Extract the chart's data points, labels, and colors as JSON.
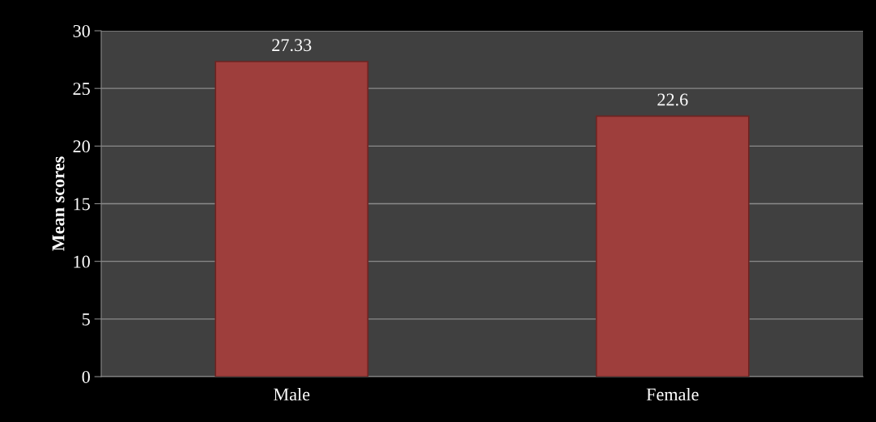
{
  "chart_data": {
    "type": "bar",
    "ylabel": "Mean scores",
    "categories": [
      "Male",
      "Female"
    ],
    "values": [
      27.33,
      22.6
    ],
    "color": "#9e3e3c",
    "ylim": [
      0,
      30
    ],
    "yticks": [
      0,
      5,
      10,
      15,
      20,
      25,
      30
    ],
    "grid": "y",
    "data_labels": true
  }
}
